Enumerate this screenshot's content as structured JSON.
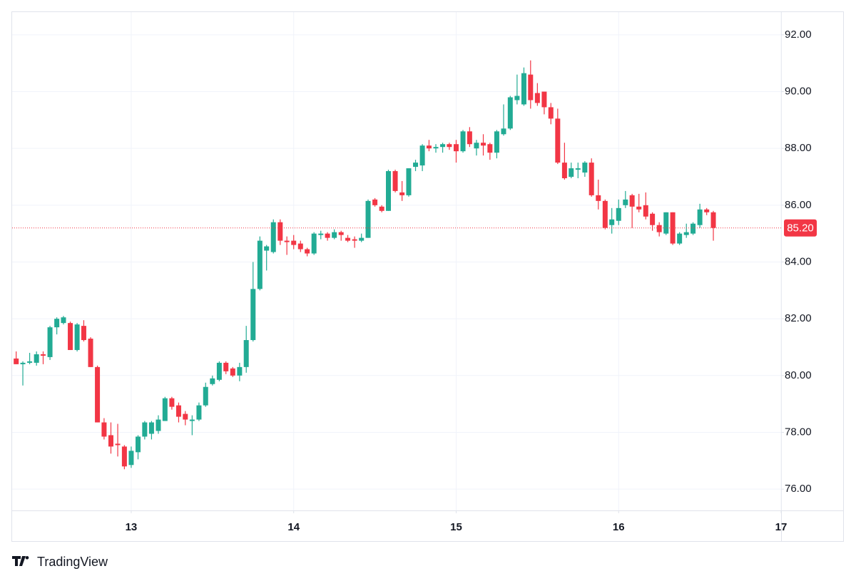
{
  "chart_data": {
    "type": "candlestick",
    "x": [
      12.292,
      12.333,
      12.375,
      12.417,
      12.458,
      12.5,
      12.542,
      12.583,
      12.625,
      12.667,
      12.708,
      12.75,
      12.792,
      12.833,
      12.875,
      12.917,
      12.958,
      13,
      13.042,
      13.083,
      13.125,
      13.167,
      13.208,
      13.25,
      13.292,
      13.333,
      13.375,
      13.417,
      13.458,
      13.5,
      13.542,
      13.583,
      13.625,
      13.667,
      13.708,
      13.75,
      13.792,
      13.833,
      13.875,
      13.917,
      13.958,
      14,
      14.042,
      14.083,
      14.125,
      14.167,
      14.208,
      14.25,
      14.292,
      14.333,
      14.375,
      14.417,
      14.458,
      14.5,
      14.542,
      14.583,
      14.625,
      14.667,
      14.708,
      14.75,
      14.792,
      14.833,
      14.875,
      14.917,
      14.958,
      15,
      15.042,
      15.083,
      15.125,
      15.167,
      15.208,
      15.25,
      15.292,
      15.333,
      15.375,
      15.417,
      15.458,
      15.5,
      15.542,
      15.583,
      15.625,
      15.667,
      15.708,
      15.75,
      15.792,
      15.833,
      15.875,
      15.917,
      15.958,
      16,
      16.042,
      16.083,
      16.125,
      16.167,
      16.208,
      16.25,
      16.292,
      16.333,
      16.375,
      16.417,
      16.458,
      16.5,
      16.542,
      16.583
    ],
    "open": [
      80.6,
      80.4,
      80.45,
      80.45,
      80.75,
      80.65,
      81.7,
      81.85,
      81.85,
      80.9,
      81.75,
      81.3,
      80.3,
      78.35,
      77.9,
      77.6,
      77.5,
      76.85,
      77.3,
      77.85,
      77.95,
      78.05,
      78.4,
      79.2,
      78.95,
      78.65,
      78.4,
      78.45,
      78.95,
      79.7,
      79.85,
      80.45,
      80.25,
      80.0,
      80.3,
      81.25,
      83.05,
      84.4,
      84.35,
      85.4,
      84.75,
      84.75,
      84.65,
      84.45,
      84.3,
      84.95,
      85.0,
      84.85,
      85.05,
      84.85,
      84.8,
      84.75,
      84.85,
      86.2,
      85.95,
      85.8,
      87.2,
      86.45,
      86.35,
      87.35,
      87.4,
      88.1,
      88.0,
      88.05,
      88.15,
      88.15,
      87.9,
      88.6,
      88.0,
      88.2,
      88.15,
      87.85,
      88.5,
      88.7,
      89.7,
      89.55,
      90.6,
      89.95,
      90.0,
      89.45,
      89.05,
      87.5,
      87.0,
      87.25,
      87.15,
      87.5,
      86.35,
      86.15,
      85.3,
      85.45,
      86.0,
      86.35,
      85.95,
      86.0,
      85.7,
      85.3,
      85.0,
      85.75,
      84.65,
      84.95,
      85.0,
      85.3,
      85.85,
      85.75
    ],
    "high": [
      80.85,
      80.5,
      80.8,
      80.85,
      80.85,
      81.75,
      82.05,
      82.1,
      81.9,
      81.85,
      81.95,
      81.35,
      80.35,
      78.5,
      78.35,
      78.3,
      77.55,
      77.5,
      77.9,
      78.4,
      78.4,
      78.6,
      79.25,
      79.25,
      79.05,
      78.75,
      78.6,
      79.05,
      79.75,
      80.0,
      80.5,
      80.5,
      80.3,
      80.45,
      81.75,
      84.0,
      84.9,
      84.6,
      85.5,
      85.5,
      84.9,
      84.95,
      84.75,
      84.5,
      85.05,
      85.1,
      85.05,
      85.15,
      85.1,
      84.95,
      84.9,
      85.0,
      86.2,
      86.25,
      86.0,
      87.25,
      87.25,
      86.85,
      87.3,
      87.6,
      88.15,
      88.3,
      88.15,
      88.2,
      88.2,
      88.3,
      88.65,
      88.75,
      88.3,
      88.5,
      88.2,
      88.65,
      89.55,
      89.85,
      90.6,
      90.85,
      91.1,
      90.3,
      90.0,
      89.6,
      89.4,
      88.2,
      87.5,
      87.5,
      87.55,
      87.65,
      86.9,
      86.2,
      85.9,
      86.2,
      86.5,
      86.4,
      86.4,
      86.45,
      85.75,
      85.4,
      85.75,
      85.75,
      85.05,
      85.35,
      85.4,
      86.05,
      85.9,
      85.8
    ],
    "low": [
      80.4,
      79.65,
      80.4,
      80.35,
      80.4,
      80.55,
      81.45,
      81.8,
      80.9,
      80.85,
      81.2,
      80.3,
      78.35,
      77.75,
      77.25,
      77.15,
      76.7,
      76.75,
      77.05,
      77.75,
      77.75,
      77.95,
      78.4,
      78.8,
      78.35,
      78.25,
      77.9,
      78.4,
      78.9,
      79.65,
      79.8,
      80.05,
      79.95,
      79.8,
      80.1,
      81.2,
      83.0,
      83.7,
      84.3,
      84.6,
      84.25,
      84.45,
      84.35,
      84.2,
      84.25,
      84.8,
      84.75,
      84.8,
      84.75,
      84.7,
      84.5,
      84.7,
      84.85,
      85.95,
      85.75,
      85.8,
      86.45,
      86.15,
      86.3,
      87.2,
      87.2,
      87.9,
      87.85,
      87.85,
      87.95,
      87.5,
      87.85,
      88.05,
      87.75,
      87.75,
      87.6,
      87.65,
      88.45,
      88.65,
      89.55,
      89.5,
      89.4,
      89.5,
      89.2,
      88.85,
      87.45,
      86.9,
      86.95,
      86.95,
      87.0,
      86.3,
      85.85,
      85.15,
      85.0,
      85.3,
      85.9,
      85.2,
      85.75,
      85.5,
      85.1,
      84.9,
      84.95,
      84.6,
      84.6,
      84.85,
      84.95,
      85.2,
      85.65,
      84.75
    ],
    "close": [
      80.4,
      80.45,
      80.5,
      80.75,
      80.7,
      81.7,
      82.0,
      82.05,
      80.9,
      81.8,
      81.25,
      80.3,
      78.35,
      77.85,
      77.5,
      77.55,
      76.8,
      77.35,
      77.85,
      78.35,
      78.35,
      78.45,
      79.2,
      78.9,
      78.55,
      78.45,
      78.45,
      78.95,
      79.6,
      79.9,
      80.45,
      80.15,
      80.0,
      80.3,
      81.25,
      83.05,
      84.75,
      84.55,
      85.4,
      84.75,
      84.7,
      84.6,
      84.45,
      84.3,
      85.0,
      85.0,
      84.85,
      85.05,
      84.95,
      84.75,
      84.75,
      84.85,
      86.15,
      86.0,
      85.8,
      87.2,
      86.5,
      86.35,
      87.3,
      87.5,
      88.1,
      88.0,
      88.05,
      88.15,
      88.05,
      87.9,
      88.6,
      88.15,
      88.2,
      88.1,
      87.85,
      88.6,
      88.7,
      89.8,
      89.85,
      90.65,
      89.7,
      89.6,
      89.45,
      89.05,
      87.5,
      86.95,
      87.3,
      87.3,
      87.5,
      86.35,
      86.15,
      85.2,
      85.5,
      85.9,
      86.2,
      85.95,
      85.85,
      85.6,
      85.3,
      85.05,
      85.75,
      84.65,
      85.0,
      85.05,
      85.35,
      85.85,
      85.75,
      85.2
    ],
    "up_color": "#22ab94",
    "down_color": "#f23645",
    "last_price": {
      "value": 85.2,
      "label": "85.20"
    },
    "last_price_color": "#f23645",
    "xlim": [
      12.267,
      17
    ],
    "xticks": [
      13,
      14,
      15,
      16,
      17
    ],
    "ylim": [
      75.25,
      92.8
    ],
    "yticks": [
      {
        "value": 76,
        "label": "76.00"
      },
      {
        "value": 78,
        "label": "78.00"
      },
      {
        "value": 80,
        "label": "80.00"
      },
      {
        "value": 82,
        "label": "82.00"
      },
      {
        "value": 84,
        "label": "84.00"
      },
      {
        "value": 86,
        "label": "86.00"
      },
      {
        "value": 88,
        "label": "88.00"
      },
      {
        "value": 90,
        "label": "90.00"
      },
      {
        "value": 92,
        "label": "92.00"
      }
    ],
    "grid": true,
    "brand": "TradingView"
  }
}
